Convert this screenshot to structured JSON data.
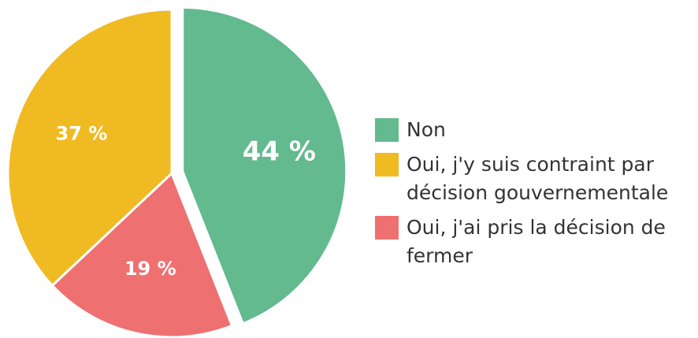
{
  "chart_data": {
    "type": "pie",
    "categories": [
      "Non",
      "Oui, j'y suis contraint par décision gouvernementale",
      "Oui, j'ai pris la décision de fermer"
    ],
    "values": [
      44,
      37,
      19
    ],
    "value_labels": [
      "44 %",
      "37 %",
      "19 %"
    ],
    "colors": [
      "#62ba8e",
      "#f0ba22",
      "#ef7070"
    ],
    "legend": "right"
  }
}
